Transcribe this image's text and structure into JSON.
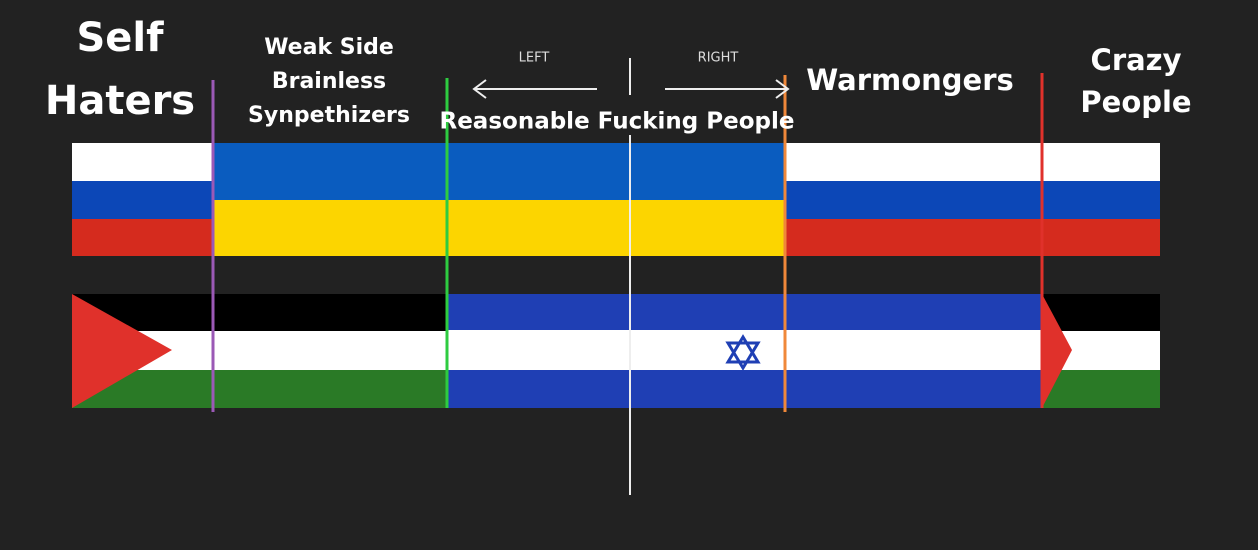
{
  "groups": [
    {
      "lines": [
        "Self",
        "Haters"
      ]
    },
    {
      "lines": [
        "Weak Side",
        "Brainless",
        "Synpethizers"
      ]
    },
    {
      "lines": [
        "Reasonable Fucking People"
      ]
    },
    {
      "lines": [
        "Warmongers"
      ]
    },
    {
      "lines": [
        "Crazy",
        "People"
      ]
    }
  ],
  "directions": {
    "left": "LEFT",
    "right": "RIGHT"
  }
}
